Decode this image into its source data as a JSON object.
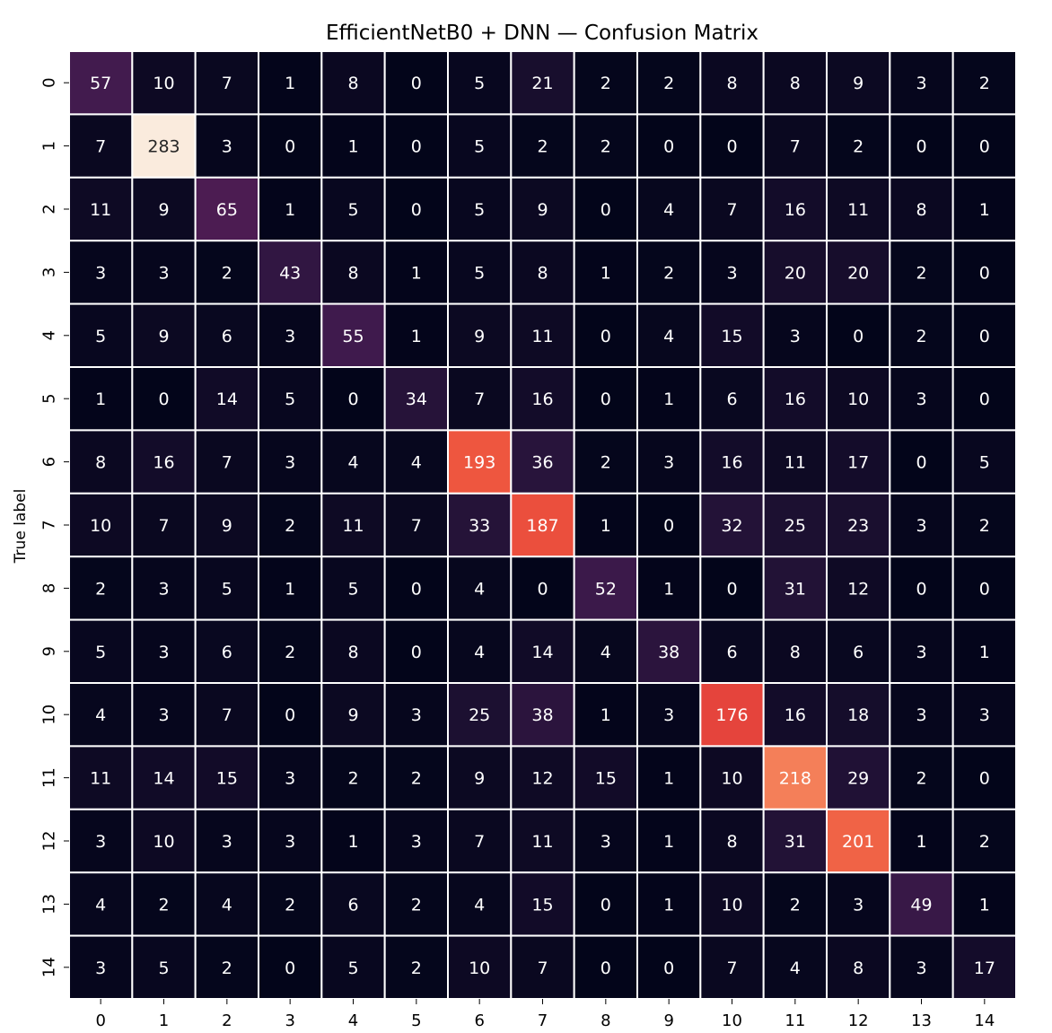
{
  "chart_data": {
    "type": "heatmap",
    "title": "EfficientNetB0 + DNN — Confusion Matrix",
    "xlabel": "",
    "ylabel": "True label",
    "x_categories": [
      "0",
      "1",
      "2",
      "3",
      "4",
      "5",
      "6",
      "7",
      "8",
      "9",
      "10",
      "11",
      "12",
      "13",
      "14"
    ],
    "y_categories": [
      "0",
      "1",
      "2",
      "3",
      "4",
      "5",
      "6",
      "7",
      "8",
      "9",
      "10",
      "11",
      "12",
      "13",
      "14"
    ],
    "values": [
      [
        57,
        10,
        7,
        1,
        8,
        0,
        5,
        21,
        2,
        2,
        8,
        8,
        9,
        3,
        2
      ],
      [
        7,
        283,
        3,
        0,
        1,
        0,
        5,
        2,
        2,
        0,
        0,
        7,
        2,
        0,
        0
      ],
      [
        11,
        9,
        65,
        1,
        5,
        0,
        5,
        9,
        0,
        4,
        7,
        16,
        11,
        8,
        1
      ],
      [
        3,
        3,
        2,
        43,
        8,
        1,
        5,
        8,
        1,
        2,
        3,
        20,
        20,
        2,
        0
      ],
      [
        5,
        9,
        6,
        3,
        55,
        1,
        9,
        11,
        0,
        4,
        15,
        3,
        0,
        2,
        0
      ],
      [
        1,
        0,
        14,
        5,
        0,
        34,
        7,
        16,
        0,
        1,
        6,
        16,
        10,
        3,
        0
      ],
      [
        8,
        16,
        7,
        3,
        4,
        4,
        193,
        36,
        2,
        3,
        16,
        11,
        17,
        0,
        5
      ],
      [
        10,
        7,
        9,
        2,
        11,
        7,
        33,
        187,
        1,
        0,
        32,
        25,
        23,
        3,
        2
      ],
      [
        2,
        3,
        5,
        1,
        5,
        0,
        4,
        0,
        52,
        1,
        0,
        31,
        12,
        0,
        0
      ],
      [
        5,
        3,
        6,
        2,
        8,
        0,
        4,
        14,
        4,
        38,
        6,
        8,
        6,
        3,
        1
      ],
      [
        4,
        3,
        7,
        0,
        9,
        3,
        25,
        38,
        1,
        3,
        176,
        16,
        18,
        3,
        3
      ],
      [
        11,
        14,
        15,
        3,
        2,
        2,
        9,
        12,
        15,
        1,
        10,
        218,
        29,
        2,
        0
      ],
      [
        3,
        10,
        3,
        3,
        1,
        3,
        7,
        11,
        3,
        1,
        8,
        31,
        201,
        1,
        2
      ],
      [
        4,
        2,
        4,
        2,
        6,
        2,
        4,
        15,
        0,
        1,
        10,
        2,
        3,
        49,
        1
      ],
      [
        3,
        5,
        2,
        0,
        5,
        2,
        10,
        7,
        0,
        0,
        7,
        4,
        8,
        3,
        17
      ]
    ],
    "vmin": 0,
    "vmax": 283,
    "colormap": "rocket",
    "cell_border_color": "#ffffff",
    "dark_text_color": "#262626",
    "light_text_color": "#ffffff",
    "colorbar": false,
    "grid": false
  }
}
